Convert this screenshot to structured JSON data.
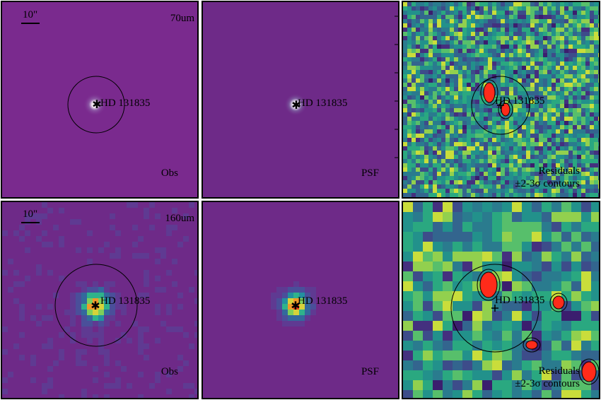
{
  "rows": [
    {
      "band": "70um",
      "scale_label": "10\"",
      "panels": [
        {
          "kind": "obs",
          "label": "Obs",
          "target": "HD 131835"
        },
        {
          "kind": "psf",
          "label": "PSF",
          "target": "HD 131835"
        },
        {
          "kind": "residual",
          "label_line1": "Residuals",
          "label_line2": "±2-3σ contours",
          "target": "HD 131835"
        }
      ]
    },
    {
      "band": "160um",
      "scale_label": "10\"",
      "panels": [
        {
          "kind": "obs",
          "label": "Obs",
          "target": "HD 131835"
        },
        {
          "kind": "psf",
          "label": "PSF",
          "target": "HD 131835"
        },
        {
          "kind": "residual",
          "label_line1": "Residuals",
          "label_line2": "±2-3σ contours",
          "target": "HD 131835"
        }
      ]
    }
  ],
  "colors": {
    "background_purple": "#7a2a8e",
    "psf_purple": "#6e2a88",
    "source_core_70": "#ffffff",
    "source_core_160": "#e83a1e",
    "residual_positive": "#ff2b1a"
  },
  "icons": [
    "star-marker-icon",
    "aperture-circle-icon"
  ]
}
